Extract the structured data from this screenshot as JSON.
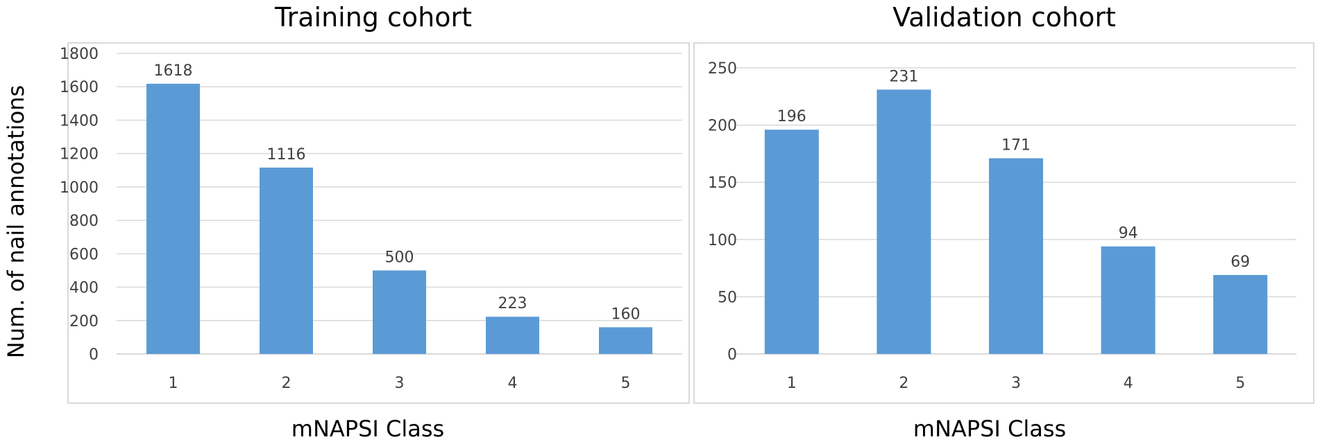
{
  "shared_ylabel": "Num. of nail annotations",
  "chart_data": [
    {
      "type": "bar",
      "title": "Training cohort",
      "xlabel": "mNAPSI Class",
      "ylabel": "",
      "categories": [
        "1",
        "2",
        "3",
        "4",
        "5"
      ],
      "values": [
        1618,
        1116,
        500,
        223,
        160
      ],
      "data_labels": [
        "1618",
        "1116",
        "500",
        "223",
        "160"
      ],
      "yticks": [
        "0",
        "200",
        "400",
        "600",
        "800",
        "1000",
        "1200",
        "1400",
        "1600",
        "1800"
      ],
      "ylim": [
        0,
        1800
      ],
      "grid": true,
      "legend": "none",
      "bar_color": "#5b9bd5"
    },
    {
      "type": "bar",
      "title": "Validation cohort",
      "xlabel": "mNAPSI Class",
      "ylabel": "",
      "categories": [
        "1",
        "2",
        "3",
        "4",
        "5"
      ],
      "values": [
        196,
        231,
        171,
        94,
        69
      ],
      "data_labels": [
        "196",
        "231",
        "171",
        "94",
        "69"
      ],
      "yticks": [
        "0",
        "50",
        "100",
        "150",
        "200",
        "250"
      ],
      "ylim": [
        0,
        250
      ],
      "grid": true,
      "legend": "none",
      "bar_color": "#5b9bd5"
    }
  ]
}
